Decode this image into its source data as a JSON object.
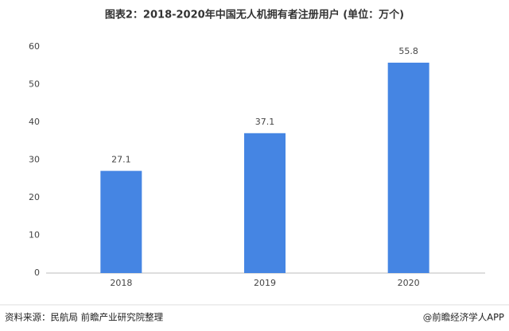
{
  "chart_data": {
    "type": "bar",
    "title": "图表2：2018-2020年中国无人机拥有者注册用户 (单位：万个)",
    "categories": [
      "2018",
      "2019",
      "2020"
    ],
    "values": [
      27.1,
      37.1,
      55.8
    ],
    "color": "#4585e3",
    "ylim": [
      0,
      60
    ],
    "yticks": [
      0,
      10,
      20,
      30,
      40,
      50,
      60
    ],
    "grid": false
  },
  "footer": {
    "source": "资料来源：民航局 前瞻产业研究院整理",
    "credit": "@前瞻经济学人APP"
  }
}
